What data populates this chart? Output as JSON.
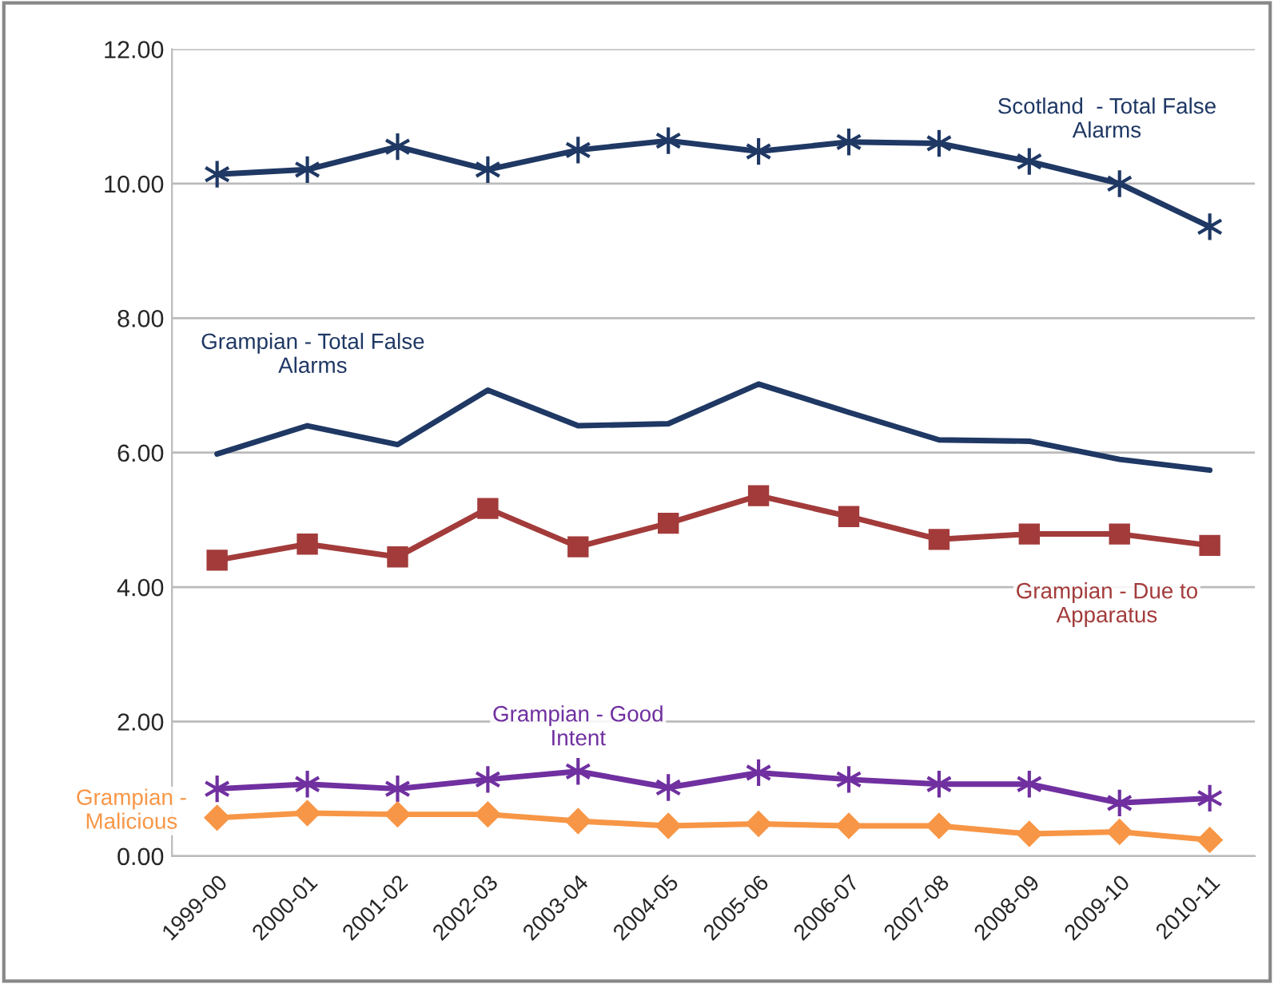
{
  "chart_data": {
    "type": "line",
    "categories": [
      "1999-00",
      "2000-01",
      "2001-02",
      "2002-03",
      "2003-04",
      "2004-05",
      "2005-06",
      "2006-07",
      "2007-08",
      "2008-09",
      "2009-10",
      "2010-11"
    ],
    "series": [
      {
        "name": "Scotland  - Total False Alarms",
        "color": "#1f3864",
        "marker": "cross",
        "values": [
          10.14,
          10.21,
          10.55,
          10.21,
          10.5,
          10.64,
          10.48,
          10.62,
          10.6,
          10.33,
          10.0,
          9.36
        ]
      },
      {
        "name": "Grampian - Total False Alarms",
        "color": "#1f3864",
        "marker": "none",
        "values": [
          5.98,
          6.4,
          6.12,
          6.93,
          6.4,
          6.43,
          7.02,
          6.6,
          6.19,
          6.17,
          5.9,
          5.74
        ]
      },
      {
        "name": "Grampian - Due to Apparatus",
        "color": "#a33b3b",
        "marker": "square",
        "values": [
          4.4,
          4.64,
          4.45,
          5.17,
          4.6,
          4.95,
          5.36,
          5.05,
          4.71,
          4.79,
          4.79,
          4.62
        ]
      },
      {
        "name": "Grampian - Good Intent",
        "color": "#7030a0",
        "marker": "cross",
        "values": [
          1.0,
          1.07,
          1.0,
          1.14,
          1.26,
          1.02,
          1.24,
          1.14,
          1.07,
          1.07,
          0.79,
          0.86
        ]
      },
      {
        "name": "Grampian - Malicious",
        "color": "#f79646",
        "marker": "diamond",
        "values": [
          0.57,
          0.64,
          0.62,
          0.62,
          0.52,
          0.45,
          0.48,
          0.45,
          0.45,
          0.33,
          0.36,
          0.24
        ]
      }
    ],
    "ylim": [
      0,
      12
    ],
    "yticks": [
      {
        "value": 0,
        "label": "0.00"
      },
      {
        "value": 2,
        "label": "2.00"
      },
      {
        "value": 4,
        "label": "4.00"
      },
      {
        "value": 6,
        "label": "6.00"
      },
      {
        "value": 8,
        "label": "8.00"
      },
      {
        "value": 10,
        "label": "10.00"
      },
      {
        "value": 12,
        "label": "12.00"
      }
    ],
    "grid": "y",
    "legend": false,
    "line_style": "solid"
  }
}
